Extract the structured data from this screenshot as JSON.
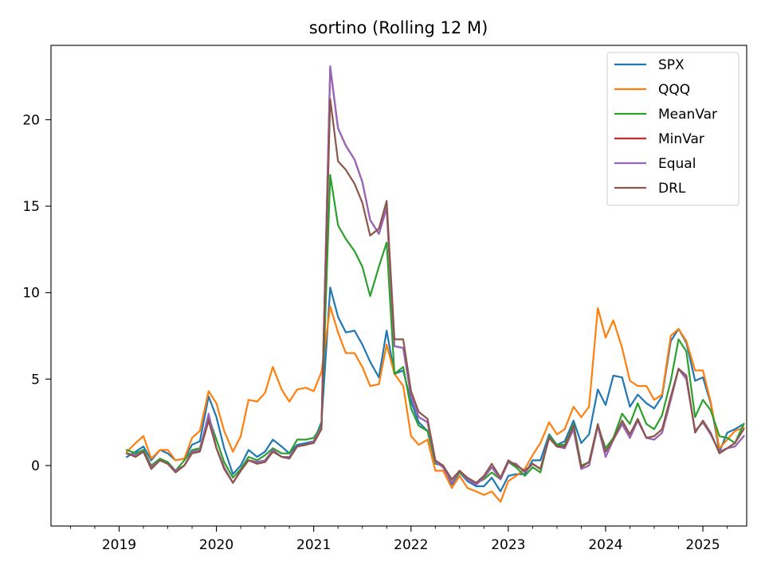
{
  "chart_data": {
    "type": "line",
    "title": "sortino (Rolling 12 M)",
    "xlabel": "",
    "ylabel": "",
    "xlim": [
      2018.3,
      2025.45
    ],
    "ylim": [
      -3.5,
      24.3
    ],
    "x_ticks": [
      2019,
      2020,
      2021,
      2022,
      2023,
      2024,
      2025
    ],
    "x_tick_labels": [
      "2019",
      "2020",
      "2021",
      "2022",
      "2023",
      "2024",
      "2025"
    ],
    "y_ticks": [
      0,
      5,
      10,
      15,
      20
    ],
    "y_tick_labels": [
      "0",
      "5",
      "10",
      "15",
      "20"
    ],
    "grid": false,
    "legend_position": "top-right",
    "x": [
      2019.08,
      2019.17,
      2019.25,
      2019.33,
      2019.42,
      2019.5,
      2019.58,
      2019.67,
      2019.75,
      2019.83,
      2019.92,
      2020.0,
      2020.08,
      2020.17,
      2020.25,
      2020.33,
      2020.42,
      2020.5,
      2020.58,
      2020.67,
      2020.75,
      2020.83,
      2020.92,
      2021.0,
      2021.08,
      2021.17,
      2021.25,
      2021.33,
      2021.42,
      2021.5,
      2021.58,
      2021.67,
      2021.75,
      2021.83,
      2021.92,
      2022.0,
      2022.08,
      2022.17,
      2022.25,
      2022.33,
      2022.42,
      2022.5,
      2022.58,
      2022.67,
      2022.75,
      2022.83,
      2022.92,
      2023.0,
      2023.08,
      2023.17,
      2023.25,
      2023.33,
      2023.42,
      2023.5,
      2023.58,
      2023.67,
      2023.75,
      2023.83,
      2023.92,
      2024.0,
      2024.08,
      2024.17,
      2024.25,
      2024.33,
      2024.42,
      2024.5,
      2024.58,
      2024.67,
      2024.75,
      2024.83,
      2024.92,
      2025.0,
      2025.08,
      2025.17,
      2025.25,
      2025.33,
      2025.42
    ],
    "series": [
      {
        "name": "SPX",
        "color": "#1f77b4",
        "values": [
          0.5,
          0.8,
          1.1,
          0.3,
          0.9,
          0.7,
          0.3,
          0.4,
          1.2,
          1.4,
          4.0,
          2.8,
          1.0,
          -0.5,
          0.0,
          0.9,
          0.5,
          0.8,
          1.5,
          1.1,
          0.7,
          1.2,
          1.3,
          1.4,
          2.5,
          10.3,
          8.6,
          7.7,
          7.8,
          7.0,
          6.0,
          5.1,
          7.8,
          5.3,
          5.5,
          3.7,
          2.5,
          2.0,
          0.2,
          0.0,
          -1.1,
          -0.4,
          -0.9,
          -1.2,
          -1.2,
          -0.7,
          -1.5,
          -0.6,
          -0.5,
          -0.5,
          0.3,
          0.3,
          1.8,
          1.2,
          1.4,
          2.6,
          1.3,
          1.8,
          4.4,
          3.5,
          5.2,
          5.1,
          3.4,
          4.1,
          3.6,
          3.3,
          4.0,
          7.2,
          7.9,
          7.1,
          4.9,
          5.1,
          3.6,
          0.8,
          1.9,
          2.1,
          2.4
        ]
      },
      {
        "name": "QQQ",
        "color": "#ff7f0e",
        "values": [
          0.8,
          1.3,
          1.7,
          0.4,
          0.9,
          0.9,
          0.3,
          0.4,
          1.6,
          2.0,
          4.3,
          3.6,
          2.0,
          0.8,
          1.7,
          3.8,
          3.7,
          4.2,
          5.7,
          4.4,
          3.7,
          4.4,
          4.5,
          4.3,
          5.4,
          9.2,
          7.7,
          6.5,
          6.5,
          5.7,
          4.6,
          4.7,
          7.0,
          5.3,
          4.6,
          1.7,
          1.2,
          1.5,
          -0.3,
          -0.3,
          -1.3,
          -0.6,
          -1.3,
          -1.5,
          -1.7,
          -1.5,
          -2.1,
          -0.9,
          -0.6,
          -0.2,
          0.6,
          1.3,
          2.5,
          1.8,
          2.1,
          3.4,
          2.8,
          3.4,
          9.1,
          7.4,
          8.4,
          6.8,
          4.9,
          4.6,
          4.6,
          3.8,
          4.1,
          7.5,
          7.9,
          7.2,
          5.5,
          5.5,
          3.7,
          1.0,
          1.5,
          2.0,
          2.2
        ]
      },
      {
        "name": "MeanVar",
        "color": "#2ca02c",
        "values": [
          0.9,
          0.7,
          0.9,
          0.0,
          0.4,
          0.2,
          -0.3,
          0.3,
          0.9,
          1.0,
          2.8,
          1.5,
          0.2,
          -0.7,
          -0.2,
          0.5,
          0.3,
          0.6,
          1.0,
          0.7,
          0.7,
          1.5,
          1.5,
          1.6,
          2.3,
          16.8,
          13.9,
          13.1,
          12.4,
          11.5,
          9.8,
          11.5,
          12.9,
          5.3,
          5.7,
          3.3,
          2.3,
          2.0,
          0.1,
          0.0,
          -1.0,
          -0.4,
          -0.8,
          -1.0,
          -0.8,
          -0.4,
          -0.8,
          0.2,
          -0.1,
          -0.6,
          -0.1,
          -0.4,
          1.7,
          1.2,
          1.2,
          2.4,
          0.0,
          0.2,
          2.3,
          1.0,
          1.6,
          3.0,
          2.4,
          3.6,
          2.4,
          2.1,
          2.9,
          4.9,
          7.3,
          6.6,
          2.8,
          3.8,
          3.2,
          1.7,
          1.6,
          1.3,
          2.4
        ]
      },
      {
        "name": "MinVar",
        "color": "#d62728",
        "values": [
          0.7,
          0.6,
          0.8,
          -0.1,
          0.3,
          0.1,
          -0.3,
          0.0,
          0.8,
          0.9,
          2.7,
          1.0,
          -0.1,
          -1.0,
          -0.3,
          0.3,
          0.2,
          0.3,
          0.9,
          0.5,
          0.5,
          1.1,
          1.2,
          1.4,
          2.2,
          23.0,
          19.5,
          18.5,
          17.7,
          16.4,
          14.2,
          13.4,
          14.9,
          6.9,
          6.8,
          4.0,
          2.8,
          2.5,
          0.2,
          -0.1,
          -1.0,
          -0.3,
          -0.8,
          -1.1,
          -0.7,
          -0.1,
          -0.8,
          0.2,
          0.1,
          -0.4,
          0.1,
          -0.2,
          1.6,
          1.1,
          1.0,
          2.1,
          -0.2,
          0.0,
          2.3,
          0.5,
          1.5,
          2.4,
          1.6,
          2.6,
          1.6,
          1.5,
          1.9,
          3.8,
          5.6,
          5.0,
          2.0,
          2.5,
          1.8,
          0.8,
          1.0,
          1.1,
          1.7
        ]
      },
      {
        "name": "Equal",
        "color": "#9467bd",
        "values": [
          0.7,
          0.6,
          0.8,
          -0.1,
          0.3,
          0.1,
          -0.3,
          0.0,
          0.8,
          0.9,
          3.0,
          1.0,
          -0.1,
          -1.0,
          -0.3,
          0.3,
          0.2,
          0.3,
          0.9,
          0.5,
          0.5,
          1.1,
          1.2,
          1.4,
          2.2,
          23.1,
          19.5,
          18.5,
          17.7,
          16.4,
          14.2,
          13.4,
          14.9,
          6.9,
          6.8,
          4.0,
          2.8,
          2.5,
          0.2,
          -0.1,
          -1.0,
          -0.3,
          -0.8,
          -1.1,
          -0.7,
          -0.1,
          -0.8,
          0.2,
          0.1,
          -0.4,
          0.1,
          -0.2,
          1.6,
          1.1,
          1.0,
          2.1,
          -0.2,
          0.0,
          2.3,
          0.5,
          1.5,
          2.4,
          1.6,
          2.6,
          1.6,
          1.5,
          1.9,
          3.8,
          5.6,
          5.0,
          2.0,
          2.5,
          1.8,
          0.8,
          1.0,
          1.1,
          1.7
        ]
      },
      {
        "name": "DRL",
        "color": "#8c564b",
        "values": [
          0.7,
          0.5,
          0.8,
          -0.2,
          0.3,
          0.1,
          -0.4,
          0.0,
          0.7,
          0.8,
          2.6,
          1.0,
          -0.2,
          -1.0,
          -0.3,
          0.3,
          0.1,
          0.2,
          0.8,
          0.5,
          0.4,
          1.1,
          1.2,
          1.3,
          2.1,
          21.2,
          17.6,
          17.1,
          16.3,
          15.2,
          13.3,
          13.7,
          15.3,
          7.3,
          7.3,
          4.3,
          3.1,
          2.7,
          0.3,
          0.0,
          -0.8,
          -0.3,
          -0.7,
          -1.0,
          -0.6,
          0.1,
          -0.7,
          0.3,
          0.0,
          -0.3,
          0.1,
          -0.2,
          1.6,
          1.1,
          1.1,
          2.3,
          -0.1,
          0.2,
          2.4,
          0.8,
          1.5,
          2.6,
          1.8,
          2.7,
          1.6,
          1.7,
          2.1,
          4.0,
          5.6,
          5.2,
          1.9,
          2.6,
          1.9,
          0.7,
          1.0,
          1.3,
          2.1
        ]
      }
    ]
  }
}
